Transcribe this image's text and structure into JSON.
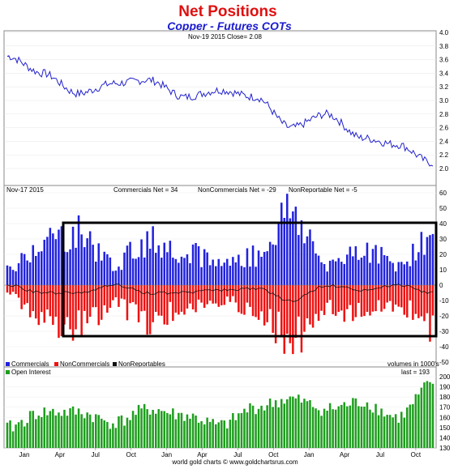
{
  "title": "Net Positions",
  "subtitle": "Copper - Futures COTs",
  "footer": "world gold charts © www.goldchartsrus.com",
  "colors": {
    "title": "#e01010",
    "subtitle": "#1a1ad0",
    "price_line": "#2222cc",
    "commercials": "#2222dd",
    "noncommercials": "#ee1111",
    "nonreportables": "#111111",
    "open_interest": "#1e9e1e"
  },
  "price_panel": {
    "header": "Nov-19  2015   Close= 2.08",
    "yticks": [
      "4.0",
      "3.8",
      "3.6",
      "3.4",
      "3.2",
      "3.0",
      "2.8",
      "2.6",
      "2.4",
      "2.2",
      "2.0"
    ]
  },
  "net_panel": {
    "date_label": "Nov-17  2015",
    "commercials_label": "Commercials Net = 34",
    "noncommercials_label": "NonCommercials Net = -29",
    "nonreportable_label": "NonReportable Net = -5",
    "yticks": [
      "60",
      "50",
      "40",
      "30",
      "20",
      "10",
      "0",
      "-10",
      "-20",
      "-30",
      "-40",
      "-50"
    ],
    "legend": [
      "Commercials",
      "NonCommercials",
      "NonReportables"
    ],
    "units_note": "volumes in 1000's"
  },
  "oi_panel": {
    "legend": "Open Interest",
    "last_label": "last = 193",
    "yticks": [
      "200",
      "190",
      "180",
      "170",
      "160",
      "150",
      "140",
      "130"
    ]
  },
  "x_months": [
    "Jan",
    "Apr",
    "Jul",
    "Oct",
    "Jan",
    "Apr",
    "Jul",
    "Oct",
    "Jan",
    "Apr",
    "Jul",
    "Oct"
  ],
  "chart_data": {
    "type": "line",
    "x": [
      "2013-01",
      "2013-04",
      "2013-07",
      "2013-10",
      "2014-01",
      "2014-04",
      "2014-07",
      "2014-10",
      "2015-01",
      "2015-04",
      "2015-07",
      "2015-10",
      "2015-11"
    ],
    "price": [
      3.65,
      3.4,
      3.1,
      3.25,
      3.3,
      3.05,
      3.15,
      3.05,
      2.6,
      2.8,
      2.45,
      2.35,
      2.08
    ],
    "commercials_net": [
      10,
      30,
      35,
      15,
      30,
      25,
      15,
      20,
      50,
      15,
      25,
      15,
      34
    ],
    "noncommercials_net": [
      -5,
      -25,
      -30,
      -15,
      -25,
      -20,
      -12,
      -18,
      -40,
      -15,
      -22,
      -15,
      -29
    ],
    "nonreportables_net": [
      0,
      -5,
      -5,
      0,
      -5,
      -5,
      -3,
      -2,
      -10,
      0,
      -3,
      0,
      -5
    ],
    "open_interest": [
      150,
      165,
      165,
      155,
      168,
      162,
      152,
      170,
      178,
      168,
      175,
      160,
      193
    ],
    "ylim_price": [
      2.0,
      4.0
    ],
    "ylim_net": [
      -50,
      60
    ],
    "ylim_oi": [
      130,
      200
    ]
  }
}
